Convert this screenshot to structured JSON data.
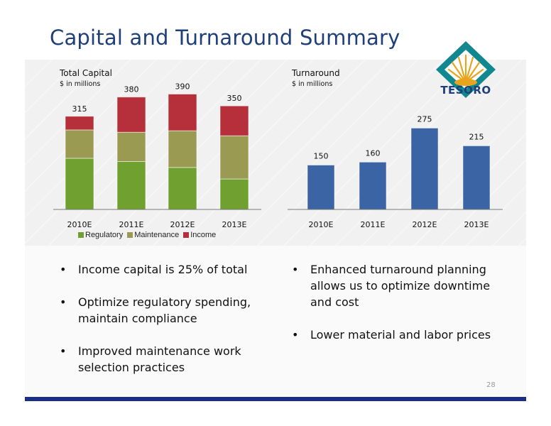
{
  "slide": {
    "title": "Capital and Turnaround Summary",
    "page_number": "28",
    "logo_text": "TESORO"
  },
  "colors": {
    "regulatory": "#6fa030",
    "maintenance": "#9a9a52",
    "income": "#b5303a",
    "turnaround": "#3a64a4",
    "title": "#1f3f7a",
    "footer": "#1b2f88"
  },
  "left_bullets": [
    "Income capital is 25% of total",
    "Optimize regulatory spending, maintain compliance",
    "Improved maintenance work selection practices"
  ],
  "right_bullets": [
    "Enhanced turnaround planning allows us to optimize downtime and cost",
    "Lower material and labor prices"
  ],
  "chart_data": [
    {
      "type": "bar",
      "stacked": true,
      "title": "Total  Capital",
      "subtitle": "$ in millions",
      "categories": [
        "2010E",
        "2011E",
        "2012E",
        "2013E"
      ],
      "series": [
        {
          "name": "Regulatory",
          "values": [
            173,
            162,
            142,
            103
          ]
        },
        {
          "name": "Maintenance",
          "values": [
            96,
            99,
            124,
            146
          ]
        },
        {
          "name": "Income",
          "values": [
            46,
            119,
            124,
            101
          ]
        }
      ],
      "totals": [
        "315",
        "380",
        "390",
        "350"
      ],
      "ylim": [
        0,
        420
      ],
      "legend": "bottom",
      "grid": false
    },
    {
      "type": "bar",
      "title": "Turnaround",
      "subtitle": "$ in millions",
      "categories": [
        "2010E",
        "2011E",
        "2012E",
        "2013E"
      ],
      "values": [
        150,
        160,
        275,
        215
      ],
      "labels": [
        "150",
        "160",
        "275",
        "215"
      ],
      "ylim": [
        0,
        420
      ],
      "grid": false
    }
  ]
}
